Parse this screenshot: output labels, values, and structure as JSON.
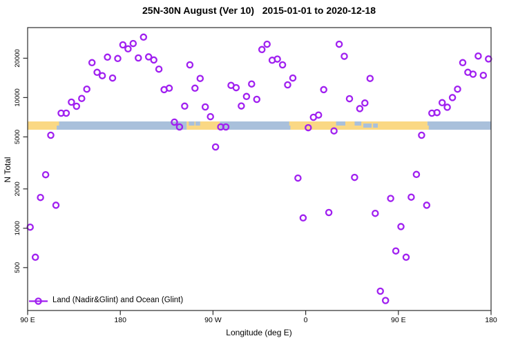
{
  "chart_data": {
    "type": "scatter",
    "title": "25N-30N August (Ver 10)   2015-01-01 to 2020-12-18",
    "xlabel": "Longitude (deg E)",
    "ylabel": "N Total",
    "y_scale": "log10",
    "ylim": [
      235,
      34300
    ],
    "xlim_deg": [
      90,
      540
    ],
    "grid": false,
    "legend_position": "bottom-left",
    "marker": {
      "shape": "open-circle",
      "color": "#A020F0"
    },
    "x_ticks": [
      {
        "deg": 90,
        "label": "90 E"
      },
      {
        "deg": 180,
        "label": "180"
      },
      {
        "deg": 270,
        "label": "90 W"
      },
      {
        "deg": 360,
        "label": "0"
      },
      {
        "deg": 450,
        "label": "90 E"
      },
      {
        "deg": 540,
        "label": "180"
      }
    ],
    "y_ticks": [
      "500",
      "1000",
      "2000",
      "5000",
      "10000",
      "20000"
    ],
    "series_name": "Land (Nadir&Glint) and Ocean (Glint)",
    "lon": [
      92.5,
      97.5,
      102.5,
      107.5,
      112.5,
      117.5,
      122.5,
      127.5,
      132.5,
      137.5,
      142.5,
      147.5,
      152.5,
      157.5,
      162.5,
      167.5,
      172.5,
      177.5,
      182.5,
      187.5,
      192.5,
      197.5,
      202.5,
      207.5,
      212.5,
      217.5,
      222.5,
      227.5,
      232.5,
      237.5,
      242.5,
      247.5,
      252.5,
      257.5,
      262.5,
      267.5,
      272.5,
      277.5,
      282.5,
      287.5,
      292.5,
      297.5,
      302.5,
      307.5,
      312.5,
      317.5,
      322.5,
      327.5,
      332.5,
      337.5,
      342.5,
      347.5,
      352.5,
      357.5,
      362.5,
      367.5,
      372.5,
      377.5,
      382.5,
      387.5,
      392.5,
      397.5,
      402.5,
      407.5,
      412.5,
      417.5,
      422.5,
      427.5,
      432.5,
      437.5,
      442.5,
      447.5,
      452.5,
      457.5,
      462.5,
      467.5,
      472.5,
      477.5,
      482.5,
      487.5,
      492.5,
      497.5,
      502.5,
      507.5,
      512.5,
      517.5,
      522.5,
      527.5,
      532.5,
      537.5
    ],
    "n": [
      1020,
      600,
      1720,
      2570,
      5150,
      1500,
      7600,
      7600,
      9230,
      8580,
      9840,
      11600,
      18500,
      15600,
      14700,
      20400,
      14100,
      19900,
      25300,
      23600,
      25900,
      20100,
      29000,
      20500,
      19400,
      16500,
      11500,
      11800,
      6490,
      5960,
      8600,
      17800,
      11800,
      14000,
      8480,
      7140,
      4190,
      5960,
      5960,
      12400,
      11900,
      8620,
      10200,
      12700,
      9690,
      23300,
      25600,
      19300,
      19700,
      17800,
      12500,
      14100,
      2420,
      1200,
      5880,
      7060,
      7350,
      11500,
      1320,
      5560,
      25600,
      20700,
      9790,
      2450,
      8230,
      9080,
      14000,
      1300,
      330,
      280,
      1690,
      670,
      1030,
      600,
      1730,
      2580,
      5150,
      1500,
      7600,
      7670,
      9140,
      8440,
      10000,
      11600,
      18500,
      15600,
      15100,
      20800,
      14800,
      19750
    ],
    "band": {
      "description": "land/ocean strip along longitude",
      "n_range": [
        5700,
        6600
      ],
      "land_color": "#FAD884",
      "ocean_color": "#A9C0DB",
      "segments": [
        {
          "from": 90,
          "to": 118.2,
          "type": "land"
        },
        {
          "from": 118.2,
          "to": 244.5,
          "type": "ocean"
        },
        {
          "from": 244.5,
          "to": 276.7,
          "type": "land"
        },
        {
          "from": 276.7,
          "to": 345.2,
          "type": "ocean"
        },
        {
          "from": 345.2,
          "to": 478.2,
          "type": "land"
        },
        {
          "from": 478.2,
          "to": 540,
          "type": "ocean"
        }
      ],
      "ocean_patches": [
        {
          "from": 246.5,
          "to": 252,
          "part": "top"
        },
        {
          "from": 253,
          "to": 257.5,
          "part": "top"
        },
        {
          "from": 389.5,
          "to": 398.5,
          "part": "top"
        },
        {
          "from": 407.5,
          "to": 414,
          "part": "top"
        },
        {
          "from": 416,
          "to": 424,
          "part": "mid"
        },
        {
          "from": 425.5,
          "to": 430,
          "part": "mid"
        }
      ],
      "land_patches": [
        {
          "from": 118,
          "to": 120.5,
          "part": "top"
        },
        {
          "from": 344,
          "to": 346.5,
          "part": "top"
        },
        {
          "from": 477,
          "to": 479.5,
          "part": "bottom"
        }
      ]
    }
  },
  "legend": {
    "label": "Land (Nadir&Glint) and Ocean (Glint)"
  },
  "colors": {
    "marker": "#A020F0",
    "land": "#FAD884",
    "ocean": "#A9C0DB",
    "axis": "#2b2b2b"
  }
}
